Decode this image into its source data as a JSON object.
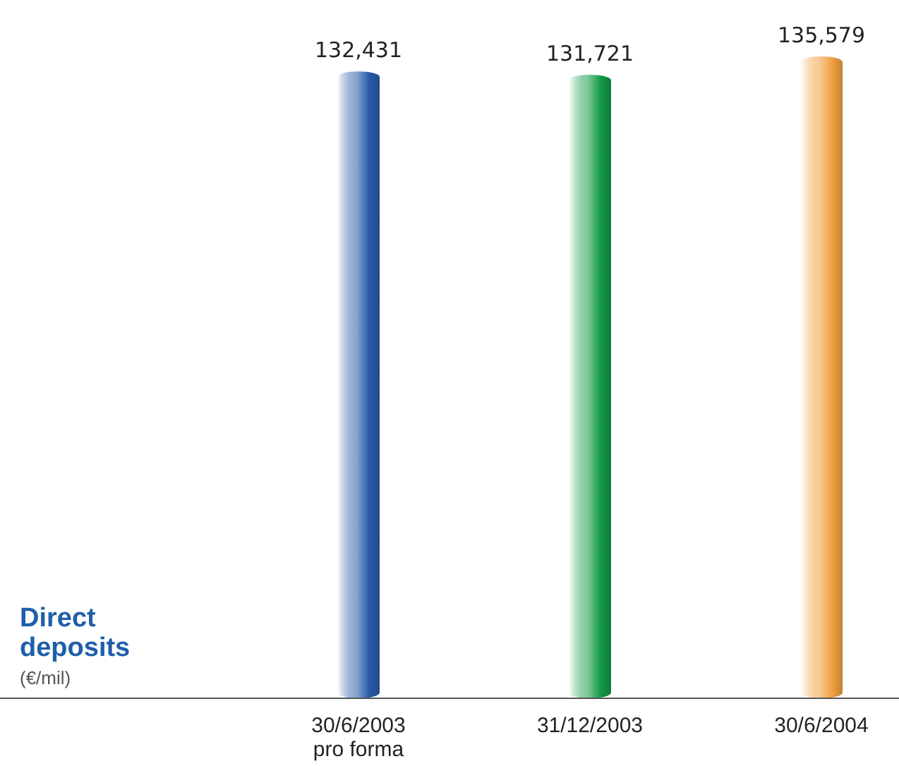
{
  "chart_data": {
    "type": "bar",
    "title": "Direct\ndeposits",
    "subtitle": "(€/mil)",
    "categories": [
      "30/6/2003\npro forma",
      "31/12/2003",
      "30/6/2004"
    ],
    "values": [
      132431,
      131721,
      135579
    ],
    "colors": [
      "#2a5caa",
      "#149a48",
      "#f0a040"
    ],
    "value_labels": [
      "132,431",
      "131,721",
      "135,579"
    ]
  }
}
